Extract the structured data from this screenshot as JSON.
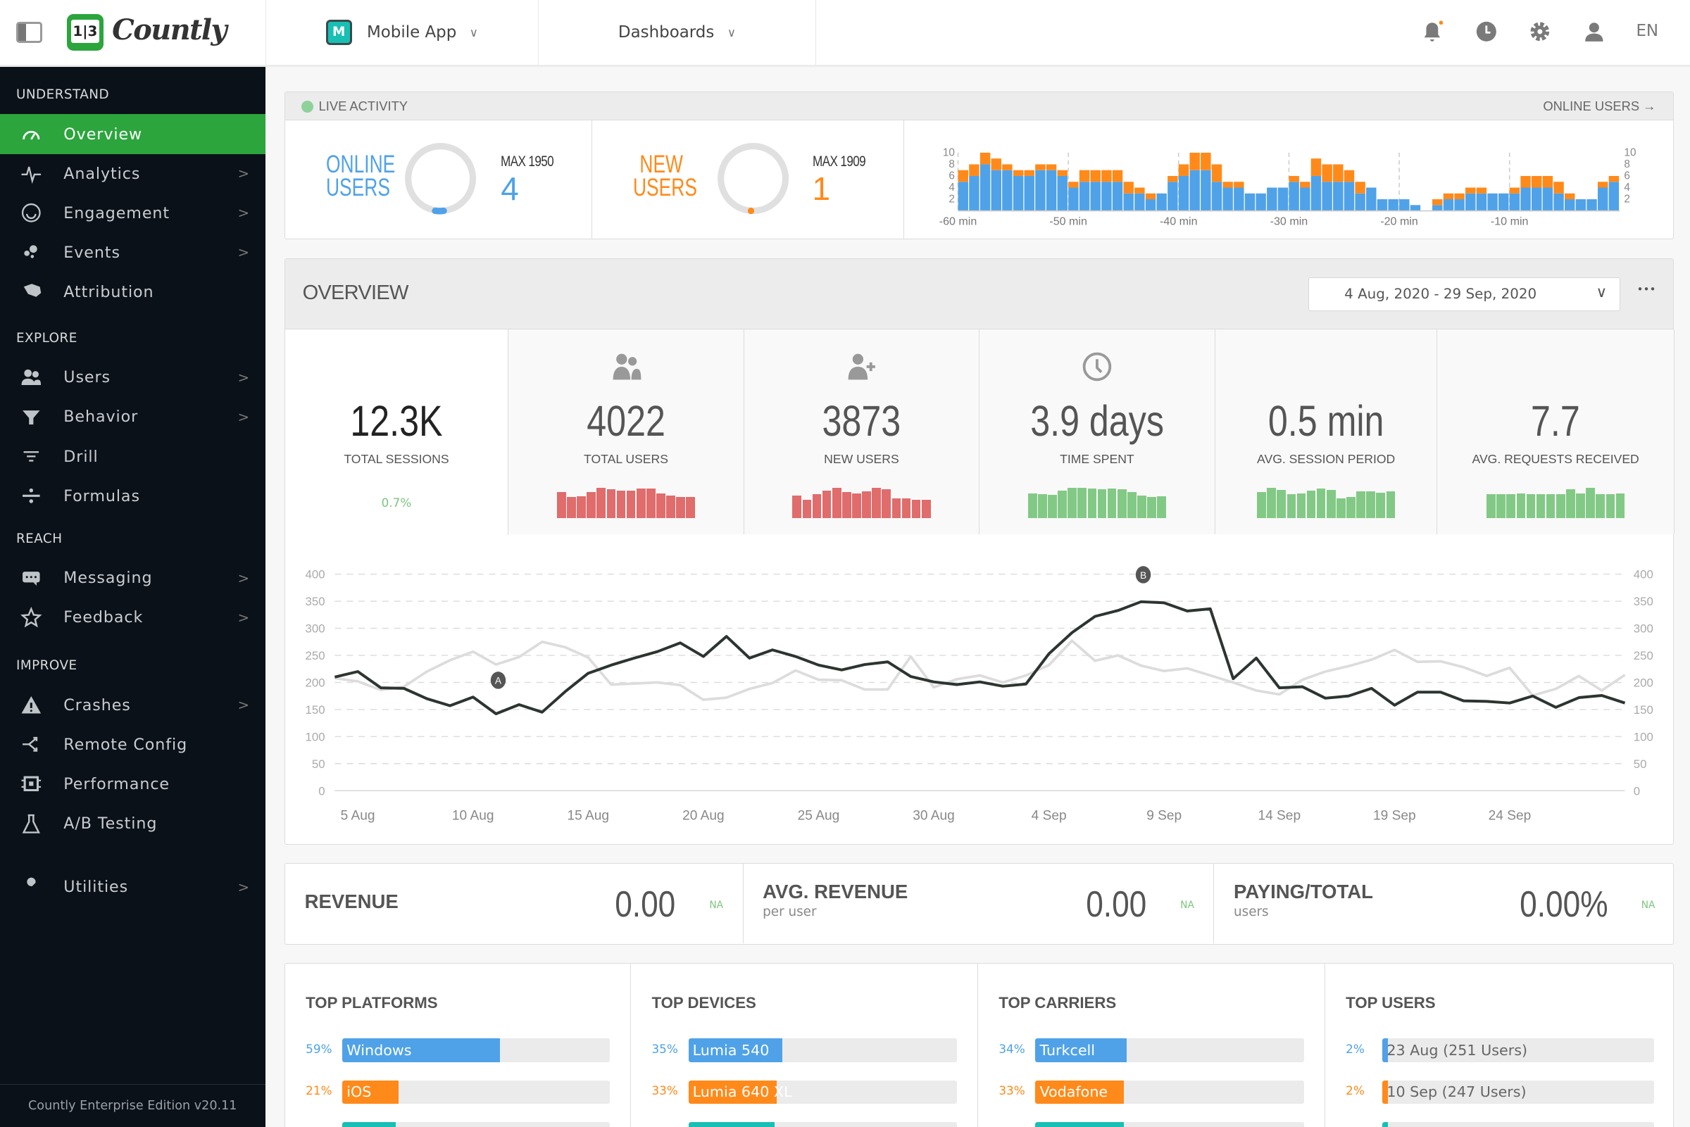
{
  "topbar": {
    "brand": "Countly",
    "app_icon_letter": "M",
    "app_name": "Mobile App",
    "dashboards": "Dashboards",
    "language": "EN",
    "icons": [
      "sidebar-toggle-icon",
      "bell-icon",
      "clock-icon",
      "gear-icon",
      "user-icon"
    ],
    "notification_dot_color": "#ff8a1a"
  },
  "sidebar": {
    "sections": [
      {
        "title": "UNDERSTAND",
        "items": [
          {
            "label": "Overview",
            "icon": "dashboard-gauge-icon",
            "active": true,
            "arrow": false
          },
          {
            "label": "Analytics",
            "icon": "pulse-icon",
            "arrow": true
          },
          {
            "label": "Engagement",
            "icon": "smile-icon",
            "arrow": true
          },
          {
            "label": "Events",
            "icon": "events-dots-icon",
            "arrow": true
          },
          {
            "label": "Attribution",
            "icon": "tag-icon",
            "arrow": false
          }
        ]
      },
      {
        "title": "EXPLORE",
        "items": [
          {
            "label": "Users",
            "icon": "users-icon",
            "arrow": true
          },
          {
            "label": "Behavior",
            "icon": "funnel-icon",
            "arrow": true
          },
          {
            "label": "Drill",
            "icon": "filter-lines-icon",
            "arrow": false
          },
          {
            "label": "Formulas",
            "icon": "divide-icon",
            "arrow": false
          }
        ]
      },
      {
        "title": "REACH",
        "items": [
          {
            "label": "Messaging",
            "icon": "chat-icon",
            "arrow": true
          },
          {
            "label": "Feedback",
            "icon": "star-icon",
            "arrow": true
          }
        ]
      },
      {
        "title": "IMPROVE",
        "items": [
          {
            "label": "Crashes",
            "icon": "warning-icon",
            "arrow": true
          },
          {
            "label": "Remote Config",
            "icon": "shuffle-icon",
            "arrow": false
          },
          {
            "label": "Performance",
            "icon": "chip-icon",
            "arrow": false
          },
          {
            "label": "A/B Testing",
            "icon": "flask-icon",
            "arrow": false
          }
        ]
      },
      {
        "title": "",
        "items": [
          {
            "label": "Utilities",
            "icon": "wrench-icon",
            "arrow": true
          }
        ]
      }
    ],
    "footer": "Countly Enterprise Edition v20.11",
    "accent": "#2ba53c"
  },
  "live": {
    "title": "LIVE ACTIVITY",
    "link": "ONLINE USERS →",
    "online": {
      "label1": "ONLINE",
      "label2": "USERS",
      "max": "MAX 1950",
      "value": "4",
      "color": "#4fa2e8"
    },
    "new": {
      "label1": "NEW",
      "label2": "USERS",
      "max": "MAX 1909",
      "value": "1",
      "color": "#ff8a1a"
    },
    "chart_data": {
      "type": "bar",
      "stacked": true,
      "x_tick_labels": [
        "-60 min",
        "-50 min",
        "-40 min",
        "-30 min",
        "-20 min",
        "-10 min"
      ],
      "y_ticks": [
        2,
        4,
        6,
        8,
        10
      ],
      "ylim": [
        0,
        10
      ],
      "series": [
        {
          "color": "#4fa2e8",
          "values": [
            5,
            6,
            8,
            7,
            7,
            6,
            6,
            7,
            7,
            6,
            4,
            5,
            5,
            5,
            5,
            3,
            3,
            2,
            3,
            5,
            6,
            7,
            7,
            5,
            4,
            4,
            3,
            3,
            4,
            4,
            5,
            4,
            6,
            5,
            5,
            5,
            3,
            4,
            2,
            2,
            2,
            1,
            0,
            1,
            2,
            2,
            3,
            3,
            3,
            3,
            3,
            4,
            4,
            4,
            3,
            2,
            2,
            2,
            4,
            5
          ]
        },
        {
          "color": "#ff8a1a",
          "values": [
            2,
            2,
            2,
            2,
            1,
            1,
            1,
            1,
            1,
            1,
            1,
            2,
            2,
            2,
            2,
            2,
            1,
            1,
            0,
            1,
            2,
            3,
            3,
            3,
            1,
            1,
            0,
            0,
            0,
            0,
            1,
            1,
            3,
            3,
            3,
            2,
            2,
            0,
            0,
            0,
            0,
            0,
            0,
            1,
            1,
            1,
            1,
            1,
            0,
            0,
            1,
            2,
            2,
            2,
            2,
            1,
            0,
            0,
            1,
            1
          ]
        }
      ]
    }
  },
  "overview": {
    "title": "OVERVIEW",
    "date_range": "4 Aug, 2020 - 29 Sep, 2020",
    "more": "•••",
    "stats": [
      {
        "value": "12.3K",
        "label": "TOTAL SESSIONS",
        "change": "0.7%",
        "selected": true
      },
      {
        "value": "4022",
        "label": "TOTAL USERS",
        "icon": "users-icon",
        "color": "#e06c6c",
        "spark": [
          85,
          70,
          72,
          85,
          100,
          95,
          90,
          90,
          98,
          98,
          80,
          75,
          70,
          70
        ]
      },
      {
        "value": "3873",
        "label": "NEW USERS",
        "icon": "user-plus-icon",
        "color": "#e06c6c",
        "spark": [
          75,
          60,
          78,
          90,
          100,
          85,
          80,
          88,
          100,
          95,
          65,
          65,
          60,
          60
        ]
      },
      {
        "value": "3.9 days",
        "label": "TIME SPENT",
        "icon": "clock-icon",
        "color": "#83c986",
        "spark": [
          82,
          78,
          77,
          90,
          100,
          100,
          98,
          95,
          97,
          95,
          85,
          75,
          70,
          72
        ]
      },
      {
        "value": "0.5 min",
        "label": "AVG. SESSION PERIOD",
        "color": "#83c986",
        "spark": [
          85,
          100,
          93,
          78,
          82,
          90,
          97,
          93,
          65,
          70,
          87,
          87,
          83,
          87
        ]
      },
      {
        "value": "7.7",
        "label": "AVG. REQUESTS RECEIVED",
        "color": "#83c986",
        "spark": [
          78,
          78,
          78,
          82,
          78,
          78,
          78,
          78,
          95,
          82,
          100,
          78,
          78,
          82
        ]
      }
    ],
    "chart_data": {
      "type": "line",
      "ylim": [
        0,
        400
      ],
      "y_ticks": [
        0,
        50,
        100,
        150,
        200,
        250,
        300,
        350,
        400
      ],
      "grid": true,
      "x_start": "4 Aug",
      "x_tick_labels": [
        "5 Aug",
        "10 Aug",
        "15 Aug",
        "20 Aug",
        "25 Aug",
        "30 Aug",
        "4 Sep",
        "9 Sep",
        "14 Sep",
        "19 Sep",
        "24 Sep"
      ],
      "annotations": [
        {
          "label": "A",
          "date": "11 Aug",
          "y": 200
        },
        {
          "label": "B",
          "date": "8 Sep",
          "y": 395
        }
      ],
      "series": [
        {
          "color": "#dcdcdc",
          "values": [
            208,
            202,
            186,
            192,
            220,
            241,
            257,
            233,
            247,
            275,
            265,
            246,
            196,
            198,
            200,
            195,
            168,
            172,
            188,
            199,
            222,
            205,
            204,
            187,
            187,
            248,
            191,
            206,
            213,
            200,
            213,
            232,
            277,
            240,
            250,
            231,
            221,
            226,
            213,
            200,
            185,
            178,
            205,
            220,
            230,
            242,
            260,
            238,
            239,
            228,
            212,
            227,
            176,
            188,
            212,
            185,
            214
          ]
        },
        {
          "color": "#2c3530",
          "values": [
            210,
            220,
            190,
            189,
            170,
            157,
            173,
            142,
            159,
            145,
            183,
            217,
            232,
            245,
            257,
            273,
            248,
            285,
            245,
            260,
            248,
            232,
            223,
            233,
            238,
            211,
            201,
            196,
            201,
            193,
            197,
            253,
            292,
            322,
            333,
            349,
            347,
            332,
            336,
            207,
            245,
            190,
            192,
            171,
            175,
            189,
            158,
            182,
            182,
            166,
            165,
            162,
            175,
            154,
            172,
            176,
            162
          ]
        }
      ]
    }
  },
  "revenue": [
    {
      "title": "REVENUE",
      "sub": "",
      "value": "0.00",
      "trend": "NA"
    },
    {
      "title": "AVG. REVENUE",
      "sub": "per user",
      "value": "0.00",
      "trend": "NA"
    },
    {
      "title": "PAYING/TOTAL",
      "sub": "users",
      "value": "0.00%",
      "trend": "NA"
    }
  ],
  "tops": [
    {
      "title": "TOP PLATFORMS",
      "rows": [
        {
          "pct": "59%",
          "pct_value": 59,
          "name": "Windows",
          "color": "#4fa2e8"
        },
        {
          "pct": "21%",
          "pct_value": 21,
          "name": "iOS",
          "color": "#ff8a1a"
        },
        {
          "pct": "",
          "pct_value": 20,
          "name": "",
          "color": "#18bfb4"
        }
      ]
    },
    {
      "title": "TOP DEVICES",
      "rows": [
        {
          "pct": "35%",
          "pct_value": 35,
          "name": "Lumia 540",
          "color": "#4fa2e8"
        },
        {
          "pct": "33%",
          "pct_value": 33,
          "name": "Lumia 640 XL",
          "color": "#ff8a1a"
        },
        {
          "pct": "",
          "pct_value": 32,
          "name": "",
          "color": "#18bfb4"
        }
      ]
    },
    {
      "title": "TOP CARRIERS",
      "rows": [
        {
          "pct": "34%",
          "pct_value": 34,
          "name": "Turkcell",
          "color": "#4fa2e8"
        },
        {
          "pct": "33%",
          "pct_value": 33,
          "name": "Vodafone",
          "color": "#ff8a1a"
        },
        {
          "pct": "",
          "pct_value": 33,
          "name": "",
          "color": "#18bfb4"
        }
      ]
    },
    {
      "title": "TOP USERS",
      "rows": [
        {
          "pct": "2%",
          "pct_value": 2,
          "name": "23 Aug (251 Users)",
          "color": "#4fa2e8"
        },
        {
          "pct": "2%",
          "pct_value": 2,
          "name": "10 Sep (247 Users)",
          "color": "#ff8a1a"
        },
        {
          "pct": "",
          "pct_value": 2,
          "name": "",
          "color": "#18bfb4"
        }
      ]
    }
  ]
}
